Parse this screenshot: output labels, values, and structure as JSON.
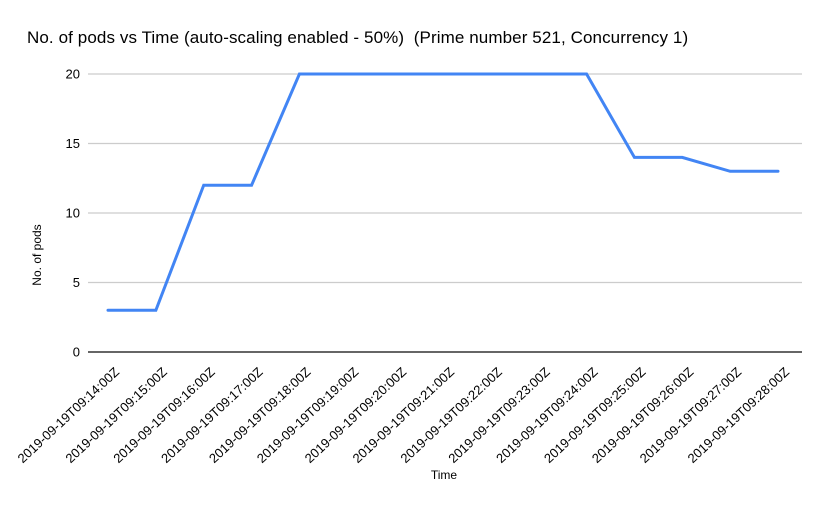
{
  "chart_data": {
    "type": "line",
    "title": "No. of pods vs Time (auto-scaling enabled - 50%)  (Prime number 521, Concurrency 1)",
    "xlabel": "Time",
    "ylabel": "No. of pods",
    "categories": [
      "2019-09-19T09:14:00Z",
      "2019-09-19T09:15:00Z",
      "2019-09-19T09:16:00Z",
      "2019-09-19T09:17:00Z",
      "2019-09-19T09:18:00Z",
      "2019-09-19T09:19:00Z",
      "2019-09-19T09:20:00Z",
      "2019-09-19T09:21:00Z",
      "2019-09-19T09:22:00Z",
      "2019-09-19T09:23:00Z",
      "2019-09-19T09:24:00Z",
      "2019-09-19T09:25:00Z",
      "2019-09-19T09:26:00Z",
      "2019-09-19T09:27:00Z",
      "2019-09-19T09:28:00Z"
    ],
    "values": [
      3,
      3,
      12,
      12,
      20,
      20,
      20,
      20,
      20,
      20,
      20,
      14,
      14,
      13,
      13
    ],
    "ylim": [
      0,
      20
    ],
    "yticks": [
      0,
      5,
      10,
      15,
      20
    ],
    "grid": true,
    "legend_position": "none",
    "x_label_rotation_deg": -43,
    "colors": {
      "line": "#4285f4",
      "gridline": "#cccccc",
      "axis_line": "#333333",
      "text": "#000000",
      "background": "#ffffff"
    }
  }
}
